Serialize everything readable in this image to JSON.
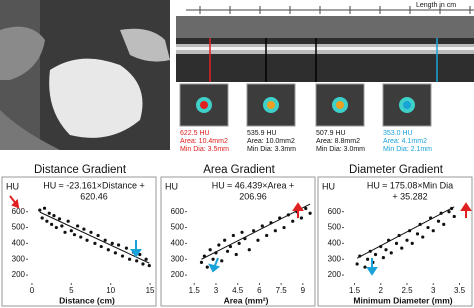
{
  "ruler_label": "Length in cm",
  "cross_sections": [
    {
      "hu": "622.5 HU",
      "area": "Area: 10.4mm2",
      "min_dia": "Min Dia: 3.5mm",
      "color": "#e02020"
    },
    {
      "hu": "535.9 HU",
      "area": "Area: 10.0mm2",
      "min_dia": "Min Dia: 3.3mm",
      "color": "#111111"
    },
    {
      "hu": "507.9 HU",
      "area": "Area: 8.8mm2",
      "min_dia": "Min Dia: 3.0mm",
      "color": "#111111"
    },
    {
      "hu": "353.0 HU",
      "area": "Area: 4.1mm2",
      "min_dia": "Min Dia: 2.1mm",
      "color": "#1aa3d9"
    }
  ],
  "chart_data": [
    {
      "type": "scatter",
      "title": "Distance Gradient",
      "xlabel": "Distance (cm)",
      "ylabel": "HU",
      "annotation": [
        "HU ≈ -23.161×Distance +",
        "620.46"
      ],
      "trendline": {
        "slope": -23.161,
        "intercept": 620.46
      },
      "color": "#111111",
      "x": [
        1.0,
        1.3,
        1.6,
        1.9,
        2.2,
        2.5,
        2.8,
        3.1,
        3.5,
        3.8,
        4.2,
        4.6,
        5.0,
        5.4,
        5.8,
        6.2,
        6.6,
        7.0,
        7.5,
        8.0,
        8.4,
        8.8,
        9.3,
        9.7,
        10.2,
        10.6,
        11.0,
        11.5,
        12.0,
        12.4,
        12.9,
        13.3,
        13.7,
        14.1,
        14.5,
        14.9
      ],
      "values": [
        610,
        560,
        622,
        540,
        590,
        520,
        575,
        500,
        555,
        510,
        470,
        540,
        480,
        455,
        510,
        440,
        490,
        420,
        470,
        400,
        450,
        380,
        420,
        360,
        400,
        340,
        390,
        320,
        370,
        300,
        345,
        290,
        330,
        270,
        300,
        260
      ],
      "xlim": [
        -0.5,
        15.5
      ],
      "ylim": [
        150,
        800
      ],
      "xticks": [
        0,
        5,
        10,
        15
      ],
      "yticks": [
        200,
        300,
        400,
        500,
        600
      ]
    },
    {
      "type": "scatter",
      "title": "Area Gradient",
      "xlabel": "Area (mm²)",
      "ylabel": "HU",
      "annotation": [
        "HU ≈ 46.439×Area +",
        "206.96"
      ],
      "trendline": {
        "slope": 46.439,
        "intercept": 206.96
      },
      "color": "#111111",
      "x": [
        2.0,
        2.2,
        2.4,
        2.6,
        2.8,
        3.0,
        3.2,
        3.4,
        3.6,
        3.8,
        4.0,
        4.2,
        4.4,
        4.6,
        4.8,
        5.0,
        5.3,
        5.6,
        5.9,
        6.2,
        6.5,
        6.8,
        7.1,
        7.4,
        7.7,
        8.0,
        8.3,
        8.6,
        8.9,
        9.2,
        9.5
      ],
      "values": [
        280,
        320,
        250,
        360,
        300,
        340,
        390,
        290,
        420,
        350,
        380,
        450,
        330,
        400,
        470,
        430,
        360,
        480,
        420,
        510,
        450,
        530,
        480,
        560,
        500,
        580,
        540,
        600,
        560,
        620,
        590
      ],
      "xlim": [
        1.0,
        9.7
      ],
      "ylim": [
        150,
        800
      ],
      "xticks": [
        1.5,
        3,
        4.5,
        6,
        7.5,
        9
      ],
      "yticks": [
        200,
        300,
        400,
        500,
        600
      ]
    },
    {
      "type": "scatter",
      "title": "Diameter Gradient",
      "xlabel": "Minimum Diameter (mm)",
      "ylabel": "HU",
      "annotation": [
        "HU ≈ 175.08×Min Dia",
        "+ 35.282"
      ],
      "trendline": {
        "slope": 175.08,
        "intercept": 35.282
      },
      "color": "#111111",
      "x": [
        1.55,
        1.6,
        1.7,
        1.75,
        1.8,
        1.85,
        1.9,
        2.0,
        2.05,
        2.1,
        2.15,
        2.2,
        2.3,
        2.35,
        2.4,
        2.5,
        2.55,
        2.6,
        2.7,
        2.75,
        2.8,
        2.9,
        2.95,
        3.0,
        3.1,
        3.15,
        3.2,
        3.3,
        3.35,
        3.4
      ],
      "values": [
        270,
        320,
        250,
        300,
        350,
        280,
        330,
        380,
        310,
        360,
        420,
        340,
        400,
        450,
        370,
        420,
        480,
        400,
        460,
        520,
        440,
        500,
        560,
        480,
        540,
        590,
        520,
        600,
        620,
        570
      ],
      "xlim": [
        1.3,
        3.7
      ],
      "ylim": [
        150,
        800
      ],
      "xticks": [
        1.5,
        2,
        2.5,
        3,
        3.5
      ],
      "yticks": [
        200,
        300,
        400,
        500,
        600
      ]
    }
  ]
}
